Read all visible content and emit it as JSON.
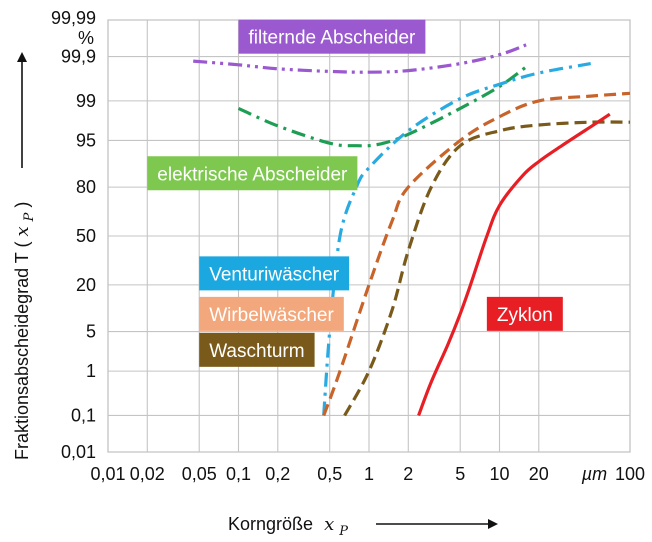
{
  "chart_data": {
    "type": "line",
    "title": "",
    "xlabel": "Korngröße",
    "xlabel_symbol": "x",
    "xlabel_subscript": "P",
    "ylabel": "Fraktionsabscheidegrad T (",
    "ylabel_symbol": "x",
    "ylabel_subscript": "P",
    "ylabel_close": ")",
    "x_unit": "µm",
    "x_scale": "log",
    "y_scale": "probability",
    "xlim": [
      0.01,
      100
    ],
    "ylim": [
      0.01,
      99.99
    ],
    "grid": true,
    "x_ticks": [
      {
        "value": 0.01,
        "label": "0,01"
      },
      {
        "value": 0.02,
        "label": "0,02"
      },
      {
        "value": 0.05,
        "label": "0,05"
      },
      {
        "value": 0.1,
        "label": "0,1"
      },
      {
        "value": 0.2,
        "label": "0,2"
      },
      {
        "value": 0.5,
        "label": "0,5"
      },
      {
        "value": 1,
        "label": "1"
      },
      {
        "value": 2,
        "label": "2"
      },
      {
        "value": 5,
        "label": "5"
      },
      {
        "value": 10,
        "label": "10"
      },
      {
        "value": 20,
        "label": "20"
      },
      {
        "value": 100,
        "label": "100"
      }
    ],
    "y_ticks": [
      {
        "value": 0.01,
        "label": "0,01"
      },
      {
        "value": 0.1,
        "label": "0,1"
      },
      {
        "value": 1,
        "label": "1"
      },
      {
        "value": 5,
        "label": "5"
      },
      {
        "value": 20,
        "label": "20"
      },
      {
        "value": 50,
        "label": "50"
      },
      {
        "value": 80,
        "label": "80"
      },
      {
        "value": 95,
        "label": "95"
      },
      {
        "value": 99,
        "label": "99"
      },
      {
        "value": 99.9,
        "label": "99,9"
      },
      {
        "value": 99.99,
        "label": "99,99"
      }
    ],
    "y_unit": "%",
    "series": [
      {
        "name": "filternde Abscheider",
        "color": "#9b59d0",
        "label_bg": "#9b59d0",
        "dash": "dashdotdot",
        "label_anchor": {
          "x": 0.1,
          "y": 99.97
        },
        "points": [
          [
            0.045,
            99.87
          ],
          [
            0.1,
            99.84
          ],
          [
            0.2,
            99.8
          ],
          [
            0.5,
            99.77
          ],
          [
            1,
            99.76
          ],
          [
            2,
            99.78
          ],
          [
            5,
            99.85
          ],
          [
            10,
            99.91
          ],
          [
            16,
            99.95
          ]
        ]
      },
      {
        "name": "elektrische Abscheider",
        "color": "#1e9e54",
        "label_bg": "#7ec850",
        "dash": "dashdot",
        "label_anchor": {
          "x": 0.02,
          "y": 86
        },
        "points": [
          [
            0.1,
            98.6
          ],
          [
            0.2,
            97.1
          ],
          [
            0.5,
            94.5
          ],
          [
            0.8,
            94
          ],
          [
            1.2,
            94.3
          ],
          [
            2,
            96
          ],
          [
            5,
            98.6
          ],
          [
            10,
            99.5
          ],
          [
            16,
            99.82
          ]
        ]
      },
      {
        "name": "Venturiwäscher",
        "color": "#29abe2",
        "label_bg": "#1ba8e0",
        "dash": "dashdot",
        "label_anchor": {
          "x": 0.05,
          "y": 26
        },
        "points": [
          [
            0.45,
            0.1
          ],
          [
            0.5,
            5
          ],
          [
            0.6,
            50
          ],
          [
            0.8,
            80
          ],
          [
            1,
            88
          ],
          [
            2,
            96.5
          ],
          [
            5,
            99.1
          ],
          [
            10,
            99.55
          ],
          [
            20,
            99.75
          ],
          [
            50,
            99.85
          ]
        ]
      },
      {
        "name": "Wirbelwäscher",
        "color": "#c8642a",
        "label_bg": "#f2a77c",
        "dash": "dash",
        "label_anchor": {
          "x": 0.05,
          "y": 9
        },
        "points": [
          [
            0.45,
            0.1
          ],
          [
            0.6,
            1
          ],
          [
            1,
            20
          ],
          [
            1.5,
            60
          ],
          [
            2,
            80
          ],
          [
            5,
            95
          ],
          [
            10,
            98
          ],
          [
            20,
            99
          ],
          [
            50,
            99.2
          ],
          [
            100,
            99.3
          ]
        ]
      },
      {
        "name": "Waschturm",
        "color": "#7a5a1a",
        "label_bg": "#7a5a1a",
        "dash": "dash",
        "label_anchor": {
          "x": 0.05,
          "y": 2.5
        },
        "points": [
          [
            0.65,
            0.1
          ],
          [
            1,
            1
          ],
          [
            1.5,
            10
          ],
          [
            2,
            40
          ],
          [
            3,
            80
          ],
          [
            5,
            94
          ],
          [
            10,
            96.5
          ],
          [
            20,
            97.2
          ],
          [
            50,
            97.5
          ],
          [
            100,
            97.5
          ]
        ]
      },
      {
        "name": "Zyklon",
        "color": "#e81e25",
        "label_bg": "#e81e25",
        "dash": "solid",
        "label_anchor": {
          "x": 8,
          "y": 9
        },
        "points": [
          [
            2.4,
            0.1
          ],
          [
            3,
            0.6
          ],
          [
            4,
            3
          ],
          [
            5,
            9
          ],
          [
            6,
            20
          ],
          [
            8,
            50
          ],
          [
            10,
            70
          ],
          [
            15,
            85
          ],
          [
            20,
            90
          ],
          [
            30,
            94
          ],
          [
            50,
            97
          ],
          [
            70,
            98.2
          ]
        ]
      }
    ]
  }
}
